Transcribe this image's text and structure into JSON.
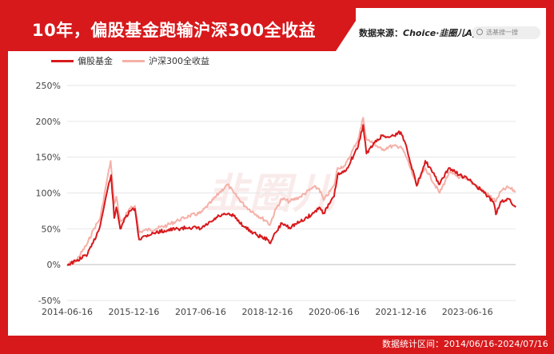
{
  "header": {
    "title": "10年，偏股基金跑输沪深300全收益",
    "source_label": "数据来源：",
    "source_a": "Choice",
    "source_sep": "·",
    "source_b": "韭圈儿App",
    "search_placeholder": "选基搜一搜"
  },
  "watermark": "韭圈儿",
  "footer": {
    "text": "数据统计区间：2014/06/16-2024/07/16"
  },
  "colors": {
    "frame": "#d7191c",
    "fund": "#d7191c",
    "index": "#f5b0a8"
  },
  "chart_data": {
    "type": "line",
    "title": "10年，偏股基金跑输沪深300全收益",
    "xlabel": "",
    "ylabel": "",
    "ylim": [
      -50,
      250
    ],
    "yticks": [
      -50,
      0,
      50,
      100,
      150,
      200,
      250
    ],
    "ytick_labels": [
      "-50%",
      "0%",
      "50%",
      "100%",
      "150%",
      "200%",
      "250%"
    ],
    "xlim": [
      "2014-06-16",
      "2024-07-16"
    ],
    "xticks": [
      "2014-06-16",
      "2015-12-16",
      "2017-06-16",
      "2018-12-16",
      "2020-06-16",
      "2021-12-16",
      "2023-06-16"
    ],
    "grid": true,
    "legend_position": "top-left",
    "series": [
      {
        "name": "偏股基金",
        "points": [
          [
            "2014-06-16",
            0
          ],
          [
            "2014-09-01",
            5
          ],
          [
            "2014-12-01",
            15
          ],
          [
            "2015-01-15",
            30
          ],
          [
            "2015-03-15",
            55
          ],
          [
            "2015-05-01",
            95
          ],
          [
            "2015-06-12",
            125
          ],
          [
            "2015-07-08",
            65
          ],
          [
            "2015-07-25",
            80
          ],
          [
            "2015-08-26",
            50
          ],
          [
            "2015-09-15",
            58
          ],
          [
            "2015-11-15",
            75
          ],
          [
            "2015-12-25",
            78
          ],
          [
            "2016-01-28",
            35
          ],
          [
            "2016-03-15",
            40
          ],
          [
            "2016-06-15",
            45
          ],
          [
            "2016-09-15",
            48
          ],
          [
            "2016-12-15",
            50
          ],
          [
            "2017-03-15",
            52
          ],
          [
            "2017-06-16",
            50
          ],
          [
            "2017-09-15",
            60
          ],
          [
            "2017-11-15",
            68
          ],
          [
            "2018-01-20",
            70
          ],
          [
            "2018-03-15",
            68
          ],
          [
            "2018-06-15",
            52
          ],
          [
            "2018-09-15",
            42
          ],
          [
            "2018-12-16",
            35
          ],
          [
            "2019-01-03",
            30
          ],
          [
            "2019-02-25",
            45
          ],
          [
            "2019-04-15",
            58
          ],
          [
            "2019-06-15",
            52
          ],
          [
            "2019-09-15",
            60
          ],
          [
            "2019-12-31",
            72
          ],
          [
            "2020-02-15",
            80
          ],
          [
            "2020-03-23",
            72
          ],
          [
            "2020-06-16",
            95
          ],
          [
            "2020-07-15",
            125
          ],
          [
            "2020-09-15",
            130
          ],
          [
            "2020-12-31",
            165
          ],
          [
            "2021-02-10",
            195
          ],
          [
            "2021-03-09",
            155
          ],
          [
            "2021-05-15",
            170
          ],
          [
            "2021-07-15",
            180
          ],
          [
            "2021-09-15",
            178
          ],
          [
            "2021-12-16",
            185
          ],
          [
            "2022-01-31",
            165
          ],
          [
            "2022-04-26",
            110
          ],
          [
            "2022-07-05",
            145
          ],
          [
            "2022-10-31",
            112
          ],
          [
            "2023-01-15",
            135
          ],
          [
            "2023-04-15",
            125
          ],
          [
            "2023-06-16",
            120
          ],
          [
            "2023-08-15",
            112
          ],
          [
            "2023-10-31",
            100
          ],
          [
            "2024-01-15",
            88
          ],
          [
            "2024-02-05",
            70
          ],
          [
            "2024-03-15",
            88
          ],
          [
            "2024-05-15",
            92
          ],
          [
            "2024-07-16",
            80
          ]
        ]
      },
      {
        "name": "沪深300全收益",
        "points": [
          [
            "2014-06-16",
            0
          ],
          [
            "2014-09-01",
            6
          ],
          [
            "2014-12-01",
            30
          ],
          [
            "2015-01-15",
            48
          ],
          [
            "2015-03-15",
            65
          ],
          [
            "2015-05-01",
            110
          ],
          [
            "2015-06-08",
            145
          ],
          [
            "2015-07-08",
            85
          ],
          [
            "2015-07-25",
            95
          ],
          [
            "2015-08-26",
            60
          ],
          [
            "2015-09-15",
            62
          ],
          [
            "2015-11-15",
            78
          ],
          [
            "2015-12-25",
            82
          ],
          [
            "2016-01-28",
            45
          ],
          [
            "2016-03-15",
            48
          ],
          [
            "2016-06-15",
            50
          ],
          [
            "2016-09-15",
            55
          ],
          [
            "2016-12-15",
            62
          ],
          [
            "2017-03-15",
            68
          ],
          [
            "2017-06-16",
            72
          ],
          [
            "2017-09-15",
            88
          ],
          [
            "2017-11-15",
            100
          ],
          [
            "2018-01-24",
            112
          ],
          [
            "2018-03-15",
            100
          ],
          [
            "2018-06-15",
            82
          ],
          [
            "2018-09-15",
            70
          ],
          [
            "2018-12-16",
            60
          ],
          [
            "2019-01-03",
            55
          ],
          [
            "2019-02-25",
            78
          ],
          [
            "2019-04-15",
            92
          ],
          [
            "2019-06-15",
            88
          ],
          [
            "2019-09-15",
            95
          ],
          [
            "2019-12-31",
            108
          ],
          [
            "2020-02-15",
            106
          ],
          [
            "2020-03-23",
            90
          ],
          [
            "2020-06-16",
            110
          ],
          [
            "2020-07-15",
            135
          ],
          [
            "2020-09-15",
            138
          ],
          [
            "2020-12-31",
            175
          ],
          [
            "2021-02-10",
            205
          ],
          [
            "2021-03-09",
            175
          ],
          [
            "2021-05-15",
            168
          ],
          [
            "2021-07-15",
            160
          ],
          [
            "2021-09-15",
            165
          ],
          [
            "2021-12-16",
            165
          ],
          [
            "2022-01-31",
            150
          ],
          [
            "2022-04-26",
            110
          ],
          [
            "2022-07-05",
            135
          ],
          [
            "2022-10-31",
            100
          ],
          [
            "2023-01-15",
            128
          ],
          [
            "2023-04-15",
            122
          ],
          [
            "2023-06-16",
            118
          ],
          [
            "2023-08-15",
            112
          ],
          [
            "2023-10-31",
            102
          ],
          [
            "2024-01-15",
            92
          ],
          [
            "2024-02-05",
            88
          ],
          [
            "2024-03-15",
            102
          ],
          [
            "2024-05-15",
            108
          ],
          [
            "2024-07-16",
            102
          ]
        ]
      }
    ]
  }
}
